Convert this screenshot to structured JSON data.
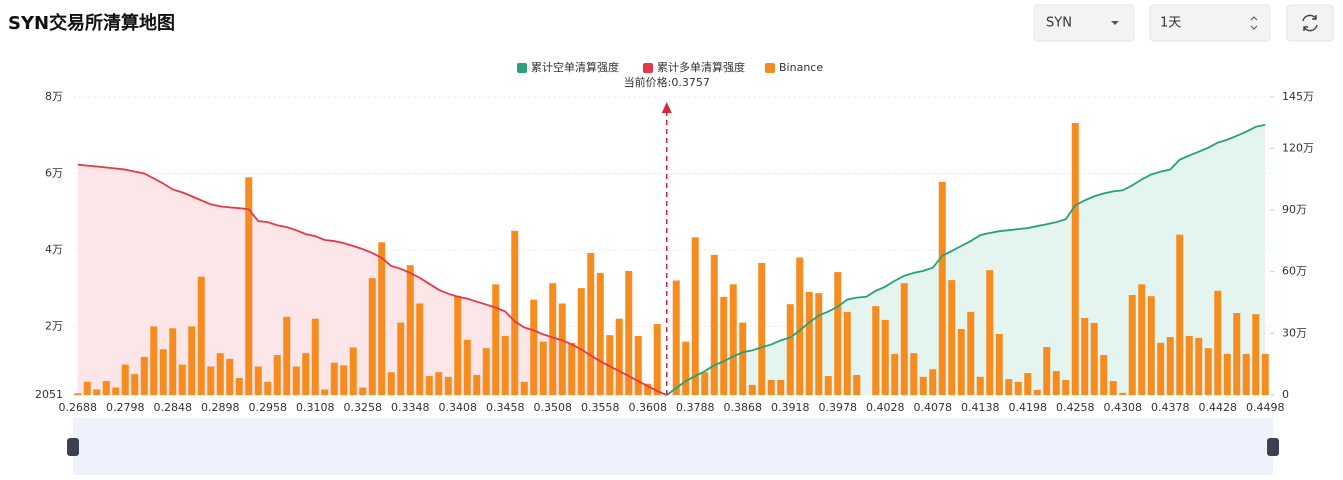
{
  "controls": {
    "symbol": "SYN",
    "period": "1天"
  },
  "chart_data": {
    "type": "bar",
    "title": "SYN交易所清算地图",
    "annotation": "当前价格:0.3757",
    "categories": [
      "0.2688",
      null,
      null,
      null,
      null,
      "0.2798",
      null,
      null,
      null,
      null,
      "0.2848",
      null,
      null,
      null,
      null,
      "0.2898",
      null,
      null,
      null,
      null,
      "0.2958",
      null,
      null,
      null,
      null,
      "0.3108",
      null,
      null,
      null,
      null,
      "0.3258",
      null,
      null,
      null,
      null,
      "0.3348",
      null,
      null,
      null,
      null,
      "0.3408",
      null,
      null,
      null,
      null,
      "0.3458",
      null,
      null,
      null,
      null,
      "0.3508",
      null,
      null,
      null,
      null,
      "0.3558",
      null,
      null,
      null,
      null,
      "0.3608",
      null,
      null,
      null,
      null,
      "0.3788",
      null,
      null,
      null,
      null,
      "0.3868",
      null,
      null,
      null,
      null,
      "0.3918",
      null,
      null,
      null,
      null,
      "0.3978",
      null,
      null,
      null,
      null,
      "0.4028",
      null,
      null,
      null,
      null,
      "0.4078",
      null,
      null,
      null,
      null,
      "0.4138",
      null,
      null,
      null,
      null,
      "0.4198",
      null,
      null,
      null,
      null,
      "0.4258",
      null,
      null,
      null,
      null,
      "0.4308",
      null,
      null,
      null,
      null,
      "0.4378",
      null,
      null,
      null,
      null,
      "0.4428",
      null,
      null,
      null,
      null,
      "0.4498"
    ],
    "series": [
      {
        "name": "累计空单清算强度",
        "type": "line",
        "axis": "y2",
        "color": "#26a17b",
        "area": "#e3f5ee",
        "values": [
          null,
          null,
          null,
          null,
          null,
          null,
          null,
          null,
          null,
          null,
          null,
          null,
          null,
          null,
          null,
          null,
          null,
          null,
          null,
          null,
          null,
          null,
          null,
          null,
          null,
          null,
          null,
          null,
          null,
          null,
          null,
          null,
          null,
          null,
          null,
          null,
          null,
          null,
          null,
          null,
          null,
          null,
          null,
          null,
          null,
          null,
          null,
          null,
          null,
          null,
          null,
          null,
          null,
          null,
          null,
          null,
          null,
          null,
          null,
          null,
          null,
          null,
          0,
          34000,
          68000,
          92000,
          116000,
          145000,
          164000,
          188000,
          208000,
          217000,
          232000,
          246000,
          266000,
          280000,
          314000,
          353000,
          387000,
          406000,
          430000,
          464000,
          474000,
          478000,
          507000,
          527000,
          556000,
          580000,
          594000,
          604000,
          619000,
          677000,
          701000,
          725000,
          749000,
          778000,
          788000,
          797000,
          802000,
          807000,
          812000,
          822000,
          831000,
          841000,
          855000,
          923000,
          947000,
          967000,
          981000,
          991000,
          996000,
          1020000,
          1049000,
          1073000,
          1087000,
          1097000,
          1145000,
          1165000,
          1184000,
          1203000,
          1228000,
          1242000,
          1261000,
          1281000,
          1305000,
          1315000
        ]
      },
      {
        "name": "累计多单清算强度",
        "type": "line",
        "axis": "y2",
        "color": "#e63946",
        "area": "#fde6e8",
        "values": [
          1121000,
          1116000,
          1112000,
          1107000,
          1102000,
          1097000,
          1087000,
          1078000,
          1054000,
          1029000,
          1000000,
          986000,
          967000,
          947000,
          928000,
          918000,
          913000,
          909000,
          904000,
          846000,
          841000,
          826000,
          817000,
          802000,
          783000,
          773000,
          754000,
          749000,
          739000,
          725000,
          710000,
          691000,
          667000,
          628000,
          614000,
          594000,
          570000,
          541000,
          512000,
          493000,
          478000,
          469000,
          454000,
          440000,
          425000,
          406000,
          358000,
          329000,
          314000,
          295000,
          280000,
          266000,
          246000,
          222000,
          193000,
          164000,
          140000,
          116000,
          92000,
          68000,
          43000,
          19000,
          0,
          null,
          null,
          null,
          null,
          null,
          null,
          null,
          null,
          null,
          null,
          null,
          null,
          null,
          null,
          null,
          null,
          null,
          null,
          null,
          null,
          null,
          null,
          null,
          null,
          null,
          null,
          null,
          null,
          null,
          null,
          null,
          null,
          null,
          null,
          null,
          null,
          null,
          null,
          null,
          null,
          null,
          null,
          null,
          null,
          null,
          null,
          null,
          null,
          null,
          null,
          null,
          null,
          null,
          null,
          null,
          null,
          null,
          null,
          null,
          null,
          null,
          null,
          null
        ]
      },
      {
        "name": "Binance",
        "type": "bar",
        "color": "#f68b1f",
        "values": [
          2500,
          5500,
          3500,
          5700,
          4000,
          10000,
          7500,
          12000,
          20000,
          14000,
          19500,
          10000,
          20000,
          33000,
          9500,
          13000,
          11500,
          6500,
          59000,
          9500,
          5500,
          12500,
          22500,
          9500,
          13000,
          22000,
          3500,
          10500,
          9800,
          14500,
          4000,
          32600,
          42000,
          8000,
          21000,
          36000,
          26000,
          7000,
          8000,
          6800,
          28000,
          16500,
          7300,
          14300,
          31000,
          17500,
          45000,
          5500,
          27000,
          16000,
          31300,
          26000,
          15700,
          30000,
          39200,
          34000,
          17700,
          22000,
          34500,
          17500,
          5000,
          20600,
          2051,
          32000,
          16000,
          43300,
          8000,
          38700,
          27700,
          31000,
          21000,
          4700,
          36600,
          6000,
          6000,
          25800,
          38000,
          29000,
          28700,
          7000,
          34200,
          23800,
          7300,
          2051,
          25300,
          21700,
          12800,
          31300,
          13000,
          6800,
          8800,
          57800,
          32100,
          19300,
          23800,
          6800,
          34700,
          18000,
          6200,
          5500,
          7800,
          3400,
          14600,
          8300,
          6000,
          73200,
          22200,
          20900,
          12500,
          5700,
          2600,
          28200,
          31000,
          27900,
          15700,
          17200,
          44000,
          17500,
          17000,
          14300,
          29300,
          12800,
          23500,
          12800,
          23200,
          12800
        ]
      }
    ],
    "ylim": [
      2051,
      80000
    ],
    "yticks": [
      2051,
      {
        "value": 20000,
        "label": "2万"
      },
      {
        "value": 40000,
        "label": "4万"
      },
      {
        "value": 60000,
        "label": "6万"
      },
      {
        "value": 80000,
        "label": "8万"
      }
    ],
    "y2lim": [
      0,
      1450000
    ],
    "y2ticks": [
      0,
      {
        "value": 300000,
        "label": "30万"
      },
      {
        "value": 600000,
        "label": "60万"
      },
      {
        "value": 900000,
        "label": "90万"
      },
      {
        "value": 1200000,
        "label": "120万"
      },
      {
        "value": 1450000,
        "label": "145万"
      }
    ],
    "grid": true
  }
}
